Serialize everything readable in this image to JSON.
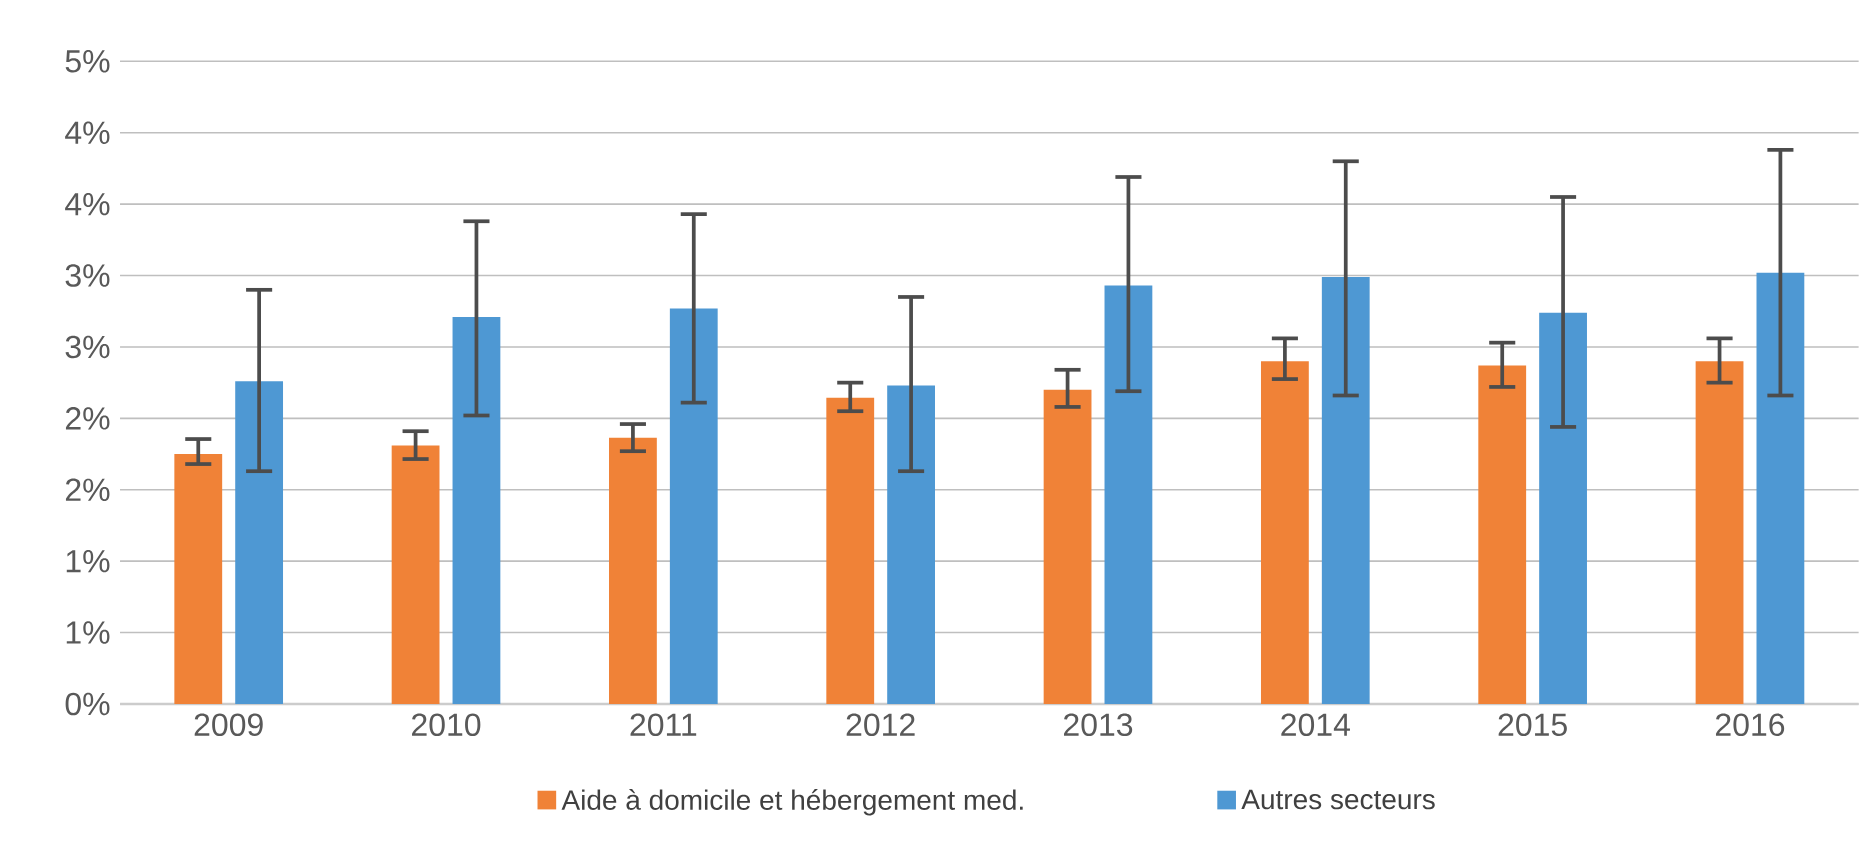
{
  "chart_data": {
    "type": "bar",
    "categories": [
      "2009",
      "2010",
      "2011",
      "2012",
      "2013",
      "2014",
      "2015",
      "2016"
    ],
    "series": [
      {
        "name": "Aide à domicile et hébergement med.",
        "color": "#f08237",
        "values": [
          1.75,
          1.81,
          1.865,
          2.145,
          2.2,
          2.4,
          2.37,
          2.4
        ],
        "errors": [
          [
            1.68,
            1.855
          ],
          [
            1.715,
            1.91
          ],
          [
            1.77,
            1.96
          ],
          [
            2.05,
            2.25
          ],
          [
            2.08,
            2.34
          ],
          [
            2.275,
            2.56
          ],
          [
            2.22,
            2.53
          ],
          [
            2.25,
            2.56
          ]
        ]
      },
      {
        "name": "Autres secteurs",
        "color": "#4e98d3",
        "values": [
          2.26,
          2.71,
          2.77,
          2.23,
          2.93,
          2.99,
          2.74,
          3.02
        ],
        "errors": [
          [
            1.63,
            2.9
          ],
          [
            2.02,
            3.38
          ],
          [
            2.11,
            3.43
          ],
          [
            1.63,
            2.85
          ],
          [
            2.19,
            3.69
          ],
          [
            2.16,
            3.8
          ],
          [
            1.94,
            3.55
          ],
          [
            2.16,
            3.88
          ]
        ]
      }
    ],
    "ylim": [
      0,
      4.5
    ],
    "yticks": [
      {
        "value": 0,
        "label": "0%"
      },
      {
        "value": 0.5,
        "label": "1%"
      },
      {
        "value": 1,
        "label": "1%"
      },
      {
        "value": 1.5,
        "label": "2%"
      },
      {
        "value": 2,
        "label": "2%"
      },
      {
        "value": 2.5,
        "label": "3%"
      },
      {
        "value": 3,
        "label": "3%"
      },
      {
        "value": 3.5,
        "label": "4%"
      },
      {
        "value": 4,
        "label": "4%"
      },
      {
        "value": 4.5,
        "label": "5%"
      }
    ],
    "grid": "y",
    "legend": "bottom"
  }
}
